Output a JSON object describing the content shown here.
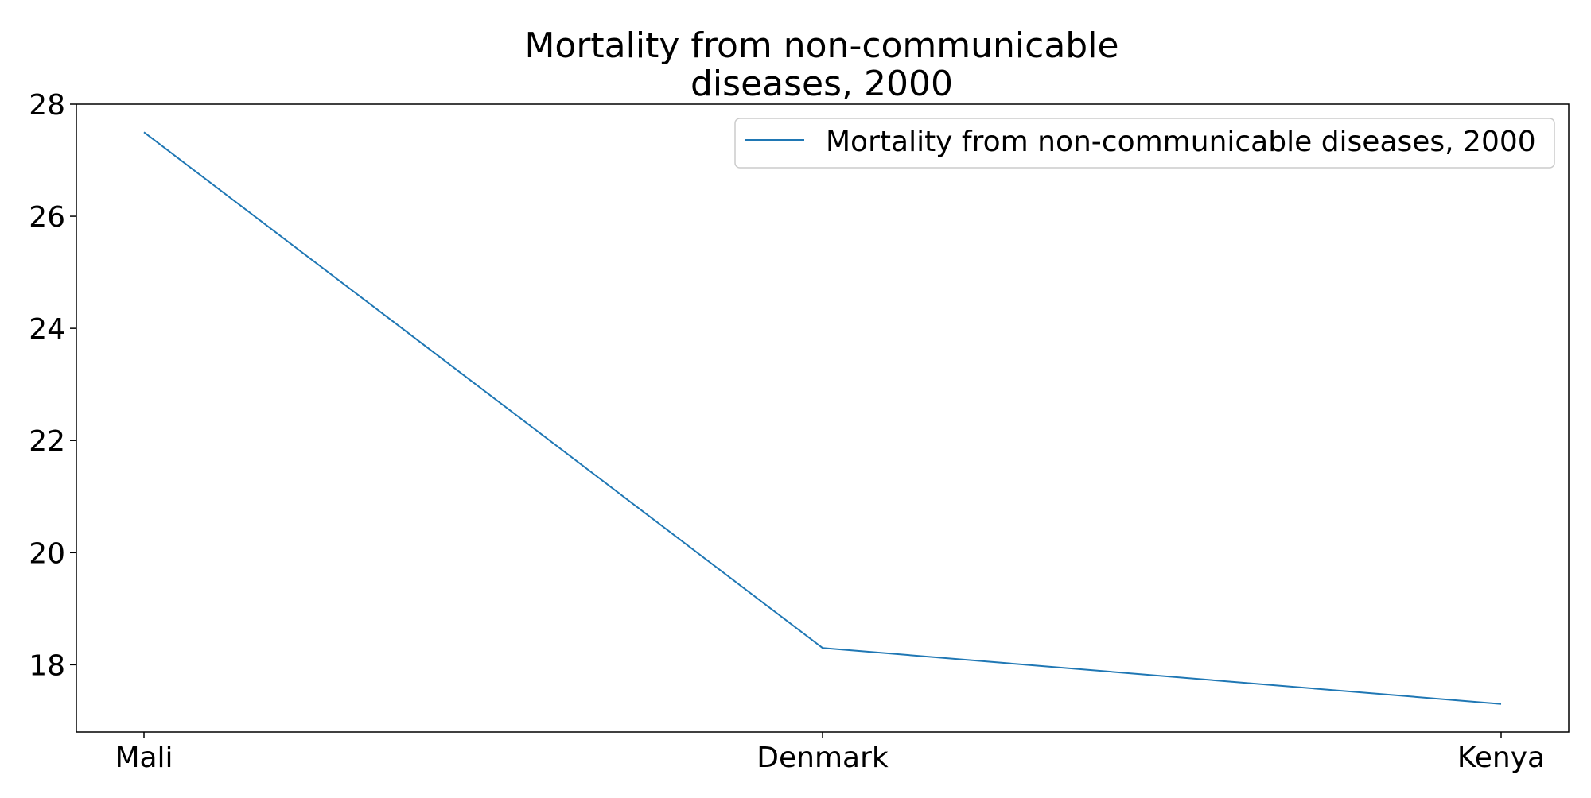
{
  "chart_data": {
    "type": "line",
    "title_lines": [
      "Mortality from non-communicable",
      "diseases, 2000"
    ],
    "xlabel": "",
    "ylabel": "",
    "categories": [
      "Mali",
      "Denmark",
      "Kenya"
    ],
    "series": [
      {
        "name": "Mortality from non-communicable diseases, 2000",
        "values": [
          27.5,
          18.3,
          17.3
        ],
        "color": "#1f77b4"
      }
    ],
    "ylim": [
      16.8,
      28
    ],
    "yticks": [
      18,
      20,
      22,
      24,
      26,
      28
    ],
    "grid": false,
    "legend_position": "top-right"
  }
}
